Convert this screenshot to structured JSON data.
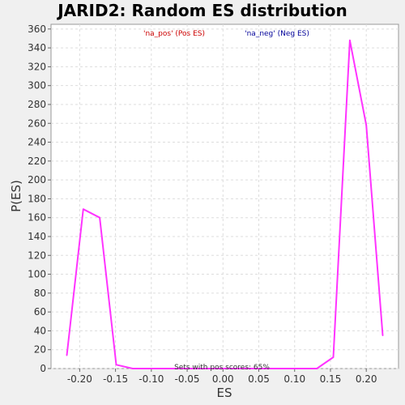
{
  "chart_data": {
    "type": "line",
    "title": "JARID2: Random ES distribution",
    "xlabel": "ES",
    "ylabel": "P(ES)",
    "xlim": [
      -0.24,
      0.245
    ],
    "ylim": [
      0,
      365
    ],
    "xticks": [
      -0.2,
      -0.15,
      -0.1,
      -0.05,
      0.0,
      0.05,
      0.1,
      0.15,
      0.2
    ],
    "xtick_labels": [
      "-0.20",
      "-0.15",
      "-0.10",
      "-0.05",
      "0.00",
      "0.05",
      "0.10",
      "0.15",
      "0.20"
    ],
    "yticks": [
      0,
      20,
      40,
      60,
      80,
      100,
      120,
      140,
      160,
      180,
      200,
      220,
      240,
      260,
      280,
      300,
      320,
      340,
      360
    ],
    "grid": true,
    "legend": {
      "placement": "top",
      "entries": [
        {
          "label": "'na_pos' (Pos ES)",
          "color": "#cc0000"
        },
        {
          "label": "'na_neg' (Neg ES)",
          "color": "#000099"
        }
      ]
    },
    "annotation": "Sets with pos scores: 65%",
    "series": [
      {
        "color": "#ff33ff",
        "x": [
          -0.218,
          -0.195,
          -0.172,
          -0.149,
          -0.126,
          -0.103,
          -0.08,
          -0.057,
          -0.034,
          -0.011,
          0.012,
          0.035,
          0.058,
          0.081,
          0.104,
          0.131,
          0.154,
          0.177,
          0.2,
          0.223
        ],
        "y": [
          14,
          169,
          160,
          4,
          0,
          0,
          0,
          0,
          0,
          0,
          0,
          0,
          0,
          0,
          0,
          0,
          12,
          348,
          258,
          35
        ]
      }
    ]
  }
}
